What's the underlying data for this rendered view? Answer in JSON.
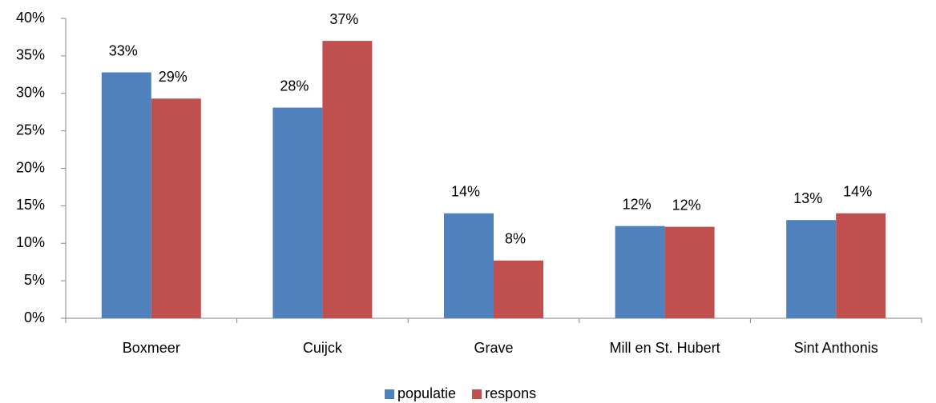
{
  "chart_data": {
    "type": "bar",
    "categories": [
      "Boxmeer",
      "Cuijck",
      "Grave",
      "Mill en St. Hubert",
      "Sint Anthonis"
    ],
    "series": [
      {
        "name": "populatie",
        "color": "#4f81bd",
        "values": [
          32.8,
          28.1,
          14.0,
          12.3,
          13.1
        ],
        "value_labels": [
          "33%",
          "28%",
          "14%",
          "12%",
          "13%"
        ]
      },
      {
        "name": "respons",
        "color": "#c0504d",
        "values": [
          29.3,
          37.0,
          7.7,
          12.2,
          14.0
        ],
        "value_labels": [
          "29%",
          "37%",
          "8%",
          "12%",
          "14%"
        ]
      }
    ],
    "ylim": [
      0,
      40
    ],
    "yticks": [
      {
        "value": 0,
        "label": "0%"
      },
      {
        "value": 5,
        "label": "5%"
      },
      {
        "value": 10,
        "label": "10%"
      },
      {
        "value": 15,
        "label": "15%"
      },
      {
        "value": 20,
        "label": "20%"
      },
      {
        "value": 25,
        "label": "25%"
      },
      {
        "value": 30,
        "label": "30%"
      },
      {
        "value": 35,
        "label": "35%"
      },
      {
        "value": 40,
        "label": "40%"
      }
    ],
    "grid": false,
    "legend": "bottom"
  }
}
